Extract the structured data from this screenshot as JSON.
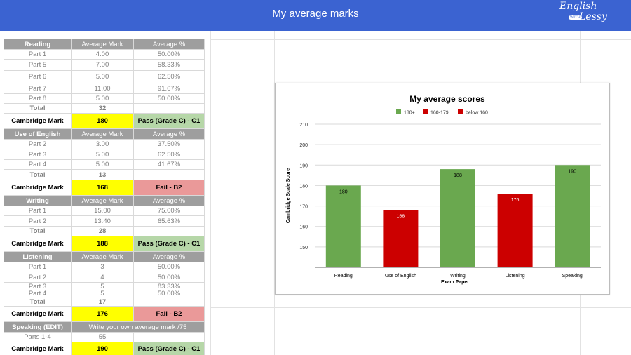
{
  "header": {
    "title": "My average marks",
    "logo_line1": "English",
    "logo_with": "WITH",
    "logo_line2": "Lessy"
  },
  "colors": {
    "header_bg": "#3b63d1",
    "section_header": "#9e9e9e",
    "cambridge_mark": "#ffff00",
    "pass": "#b6d7a8",
    "fail": "#ea9999"
  },
  "table": {
    "reading": {
      "header": [
        "Reading",
        "Average Mark",
        "Average %"
      ],
      "rows": [
        [
          "Part 1",
          "4.00",
          "50.00%"
        ],
        [
          "Part 5",
          "7.00",
          "58.33%"
        ],
        [
          "Part 6",
          "5.00",
          "62.50%"
        ],
        [
          "Part 7",
          "11.00",
          "91.67%"
        ],
        [
          "Part 8",
          "5.00",
          "50.00%"
        ]
      ],
      "total": [
        "Total",
        "32"
      ],
      "cambridge": [
        "Cambridge Mark",
        "180",
        "Pass (Grade C) - C1"
      ]
    },
    "use_of_english": {
      "header": [
        "Use of English",
        "Average Mark",
        "Average %"
      ],
      "rows": [
        [
          "Part 2",
          "3.00",
          "37.50%"
        ],
        [
          "Part 3",
          "5.00",
          "62.50%"
        ],
        [
          "Part 4",
          "5.00",
          "41.67%"
        ]
      ],
      "total": [
        "Total",
        "13"
      ],
      "cambridge": [
        "Cambridge Mark",
        "168",
        "Fail - B2"
      ]
    },
    "writing": {
      "header": [
        "Writing",
        "Average Mark",
        "Average %"
      ],
      "rows": [
        [
          "Part 1",
          "15.00",
          "75.00%"
        ],
        [
          "Part 2",
          "13.40",
          "65.63%"
        ]
      ],
      "total": [
        "Total",
        "28"
      ],
      "cambridge": [
        "Cambridge Mark",
        "188",
        "Pass (Grade C) - C1"
      ]
    },
    "listening": {
      "header": [
        "Listening",
        "Average Mark",
        "Average %"
      ],
      "rows": [
        [
          "Part 1",
          "3",
          "50.00%"
        ],
        [
          "Part 2",
          "4",
          "50.00%"
        ],
        [
          "Part 3",
          "5",
          "83.33%"
        ],
        [
          "Part 4",
          "5",
          "50.00%"
        ]
      ],
      "total": [
        "Total",
        "17"
      ],
      "cambridge": [
        "Cambridge Mark",
        "176",
        "Fail - B2"
      ]
    },
    "speaking": {
      "header": [
        "Speaking  (EDIT)",
        "Write your own average mark /75"
      ],
      "row": [
        "Parts 1-4",
        "55"
      ],
      "cambridge": [
        "Cambridge Mark",
        "190",
        "Pass (Grade C) - C1"
      ]
    }
  },
  "chart_data": {
    "type": "bar",
    "title": "My average scores",
    "xlabel": "Exam Paper",
    "ylabel": "Cambridge Scale Score",
    "categories": [
      "Reading",
      "Use of English",
      "Writing",
      "Listening",
      "Speaking"
    ],
    "values": [
      180,
      168,
      188,
      176,
      190
    ],
    "bar_colors": [
      "#6aa84f",
      "#cc0000",
      "#6aa84f",
      "#cc0000",
      "#6aa84f"
    ],
    "legend": [
      {
        "label": "180+",
        "color": "#6aa84f"
      },
      {
        "label": "160-179",
        "color": "#cc0000"
      },
      {
        "label": "below 160",
        "color": "#cc0000"
      }
    ],
    "legend_position": "top",
    "ylim": [
      140,
      210
    ],
    "yticks": [
      150,
      160,
      170,
      180,
      190,
      200,
      210
    ],
    "grid": true
  }
}
